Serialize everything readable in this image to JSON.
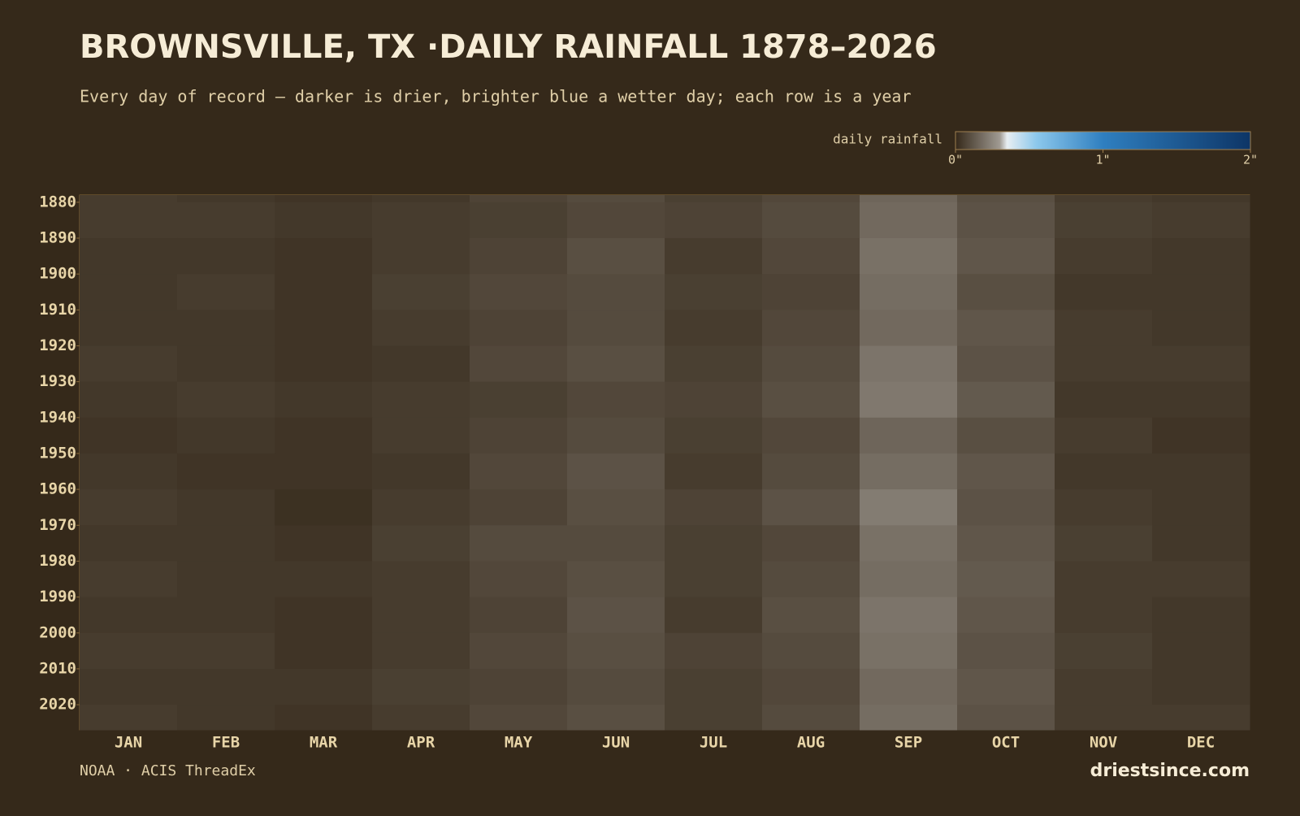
{
  "chart_data": {
    "type": "heatmap",
    "title": "BROWNSVILLE, TX ·DAILY RAINFALL 1878–2026",
    "subtitle": "Every day of record — darker is drier, brighter blue a wetter day; each row is a year",
    "colorbar_label": "daily rainfall",
    "clim": [
      0,
      2
    ],
    "cticks": [
      {
        "value": 0,
        "label": "0\""
      },
      {
        "value": 1,
        "label": "1\""
      },
      {
        "value": 2,
        "label": "2\""
      }
    ],
    "colorscale": [
      [
        0,
        "#35291a"
      ],
      [
        0.3,
        "#a09a92"
      ],
      [
        0.35,
        "#e8eef2"
      ],
      [
        0.55,
        "#8cc8ec"
      ],
      [
        1,
        "#2f7fc0"
      ],
      [
        2,
        "#0d3566"
      ]
    ],
    "categories": [
      "JAN",
      "FEB",
      "MAR",
      "APR",
      "MAY",
      "JUN",
      "JUL",
      "AUG",
      "SEP",
      "OCT",
      "NOV",
      "DEC"
    ],
    "y_bins": [
      1878,
      1880,
      1890,
      1900,
      1910,
      1920,
      1930,
      1940,
      1950,
      1960,
      1970,
      1980,
      1990,
      2000,
      2010,
      2020,
      2027
    ],
    "ylim": [
      1878,
      2027
    ],
    "yticks": [
      1880,
      1890,
      1900,
      1910,
      1920,
      1930,
      1940,
      1950,
      1960,
      1970,
      1980,
      1990,
      2000,
      2010,
      2020
    ],
    "values": [
      [
        0.05,
        0.04,
        0.03,
        0.04,
        0.07,
        0.09,
        0.06,
        0.08,
        0.16,
        0.1,
        0.05,
        0.04
      ],
      [
        0.05,
        0.05,
        0.04,
        0.05,
        0.06,
        0.08,
        0.07,
        0.09,
        0.17,
        0.11,
        0.06,
        0.05
      ],
      [
        0.04,
        0.04,
        0.03,
        0.05,
        0.07,
        0.1,
        0.05,
        0.08,
        0.19,
        0.12,
        0.05,
        0.04
      ],
      [
        0.04,
        0.05,
        0.03,
        0.06,
        0.08,
        0.09,
        0.06,
        0.07,
        0.18,
        0.1,
        0.04,
        0.04
      ],
      [
        0.04,
        0.04,
        0.03,
        0.05,
        0.07,
        0.09,
        0.05,
        0.08,
        0.17,
        0.12,
        0.05,
        0.04
      ],
      [
        0.05,
        0.04,
        0.03,
        0.04,
        0.08,
        0.1,
        0.06,
        0.09,
        0.2,
        0.11,
        0.05,
        0.05
      ],
      [
        0.04,
        0.05,
        0.04,
        0.05,
        0.06,
        0.08,
        0.07,
        0.1,
        0.21,
        0.13,
        0.04,
        0.04
      ],
      [
        0.03,
        0.04,
        0.03,
        0.05,
        0.07,
        0.09,
        0.06,
        0.08,
        0.16,
        0.1,
        0.05,
        0.03
      ],
      [
        0.04,
        0.03,
        0.03,
        0.04,
        0.08,
        0.11,
        0.05,
        0.09,
        0.18,
        0.12,
        0.04,
        0.04
      ],
      [
        0.05,
        0.04,
        0.02,
        0.05,
        0.07,
        0.1,
        0.07,
        0.11,
        0.22,
        0.11,
        0.05,
        0.04
      ],
      [
        0.04,
        0.04,
        0.03,
        0.06,
        0.09,
        0.09,
        0.06,
        0.08,
        0.19,
        0.12,
        0.06,
        0.04
      ],
      [
        0.05,
        0.04,
        0.04,
        0.05,
        0.08,
        0.1,
        0.06,
        0.09,
        0.18,
        0.13,
        0.05,
        0.05
      ],
      [
        0.04,
        0.04,
        0.03,
        0.05,
        0.07,
        0.11,
        0.05,
        0.1,
        0.2,
        0.12,
        0.05,
        0.04
      ],
      [
        0.05,
        0.05,
        0.03,
        0.05,
        0.08,
        0.1,
        0.07,
        0.09,
        0.19,
        0.11,
        0.06,
        0.04
      ],
      [
        0.04,
        0.04,
        0.04,
        0.06,
        0.07,
        0.09,
        0.06,
        0.08,
        0.17,
        0.12,
        0.05,
        0.04
      ],
      [
        0.05,
        0.04,
        0.03,
        0.05,
        0.08,
        0.1,
        0.06,
        0.09,
        0.18,
        0.11,
        0.05,
        0.05
      ]
    ],
    "source": "NOAA · ACIS ThreadEx",
    "brand": "driestsince.com"
  }
}
